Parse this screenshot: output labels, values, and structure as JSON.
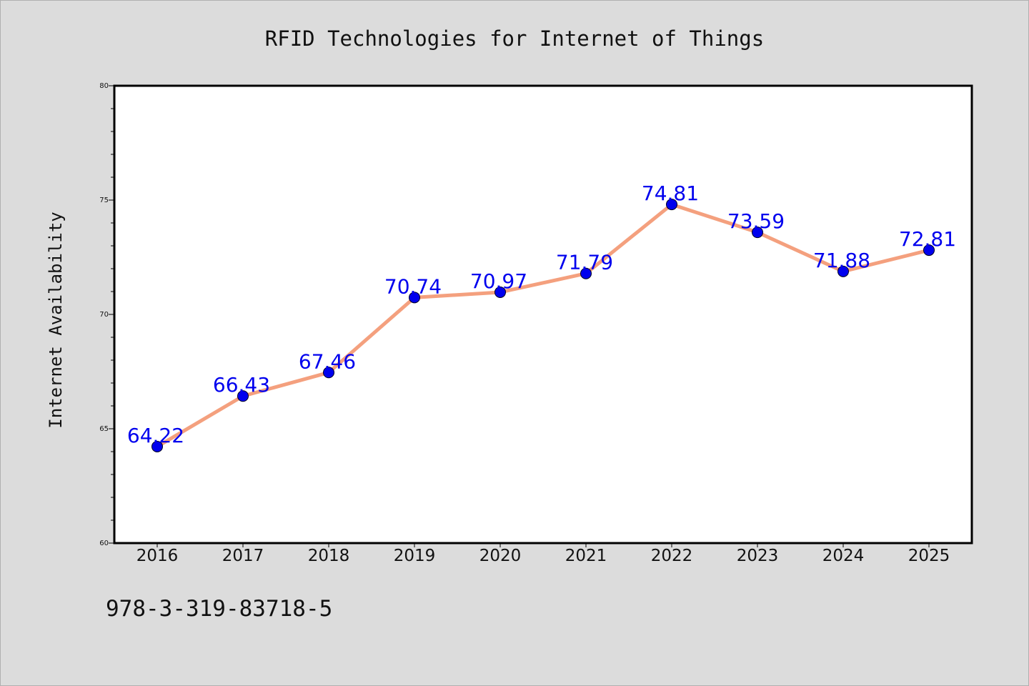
{
  "isbn_text": "978-3-319-83718-5",
  "colors": {
    "background": "#dcdcdc",
    "plot_background": "#ffffff",
    "line": "#f4a07e",
    "marker": "#0000ee",
    "data_label": "#0000ee",
    "text": "#111111"
  },
  "chart_data": {
    "type": "line",
    "title": "RFID Technologies for Internet of Things",
    "xlabel": "",
    "ylabel": "Internet Availability",
    "categories": [
      "2016",
      "2017",
      "2018",
      "2019",
      "2020",
      "2021",
      "2022",
      "2023",
      "2024",
      "2025"
    ],
    "series": [
      {
        "values": [
          64.22,
          66.43,
          67.46,
          70.74,
          70.97,
          71.79,
          74.81,
          73.59,
          71.88,
          72.81
        ],
        "labels": [
          "64.22",
          "66.43",
          "67.46",
          "70.74",
          "70.97",
          "71.79",
          "74.81",
          "73.59",
          "71.88",
          "72.81"
        ]
      }
    ],
    "ylim": [
      60,
      80
    ],
    "yticks": [
      60,
      65,
      70,
      75,
      80
    ],
    "ytick_labels": [
      "60",
      "65",
      "70",
      "75",
      "80"
    ],
    "minor_tick_step": 1,
    "grid": false,
    "legend": "none"
  }
}
